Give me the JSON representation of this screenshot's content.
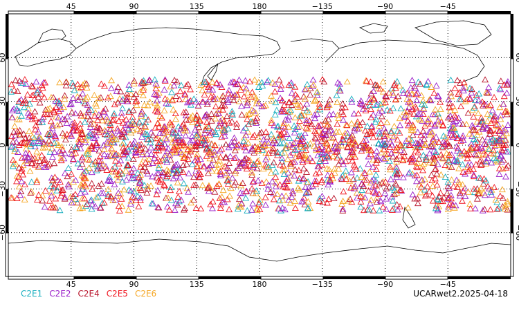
{
  "map": {
    "projection": "cylindrical",
    "lon_range": [
      0,
      360
    ],
    "lat_range": [
      -90,
      90
    ],
    "grid": "dotted",
    "top_lon_labels": [
      "45",
      "90",
      "135",
      "180",
      "−135",
      "−90",
      "−45"
    ],
    "bottom_lon_labels": [
      "45",
      "90",
      "135",
      "180",
      "−135",
      "−90",
      "−45"
    ],
    "lat_labels": [
      "60",
      "30",
      "0",
      "−30",
      "−60"
    ],
    "lon_values": [
      45,
      90,
      135,
      180,
      225,
      270,
      315
    ],
    "lat_values": [
      60,
      30,
      0,
      -30,
      -60
    ]
  },
  "legend": [
    {
      "label": "C2E1",
      "color": "#17aebf"
    },
    {
      "label": "C2E2",
      "color": "#9a1ec8"
    },
    {
      "label": "C2E4",
      "color": "#b8132a"
    },
    {
      "label": "C2E5",
      "color": "#f0141e"
    },
    {
      "label": "C2E6",
      "color": "#f5a623"
    }
  ],
  "stamp": "UCARwet2.2025-04-18",
  "observations": {
    "marker": "triangle-open",
    "lat_band": [
      -45,
      45
    ]
  }
}
